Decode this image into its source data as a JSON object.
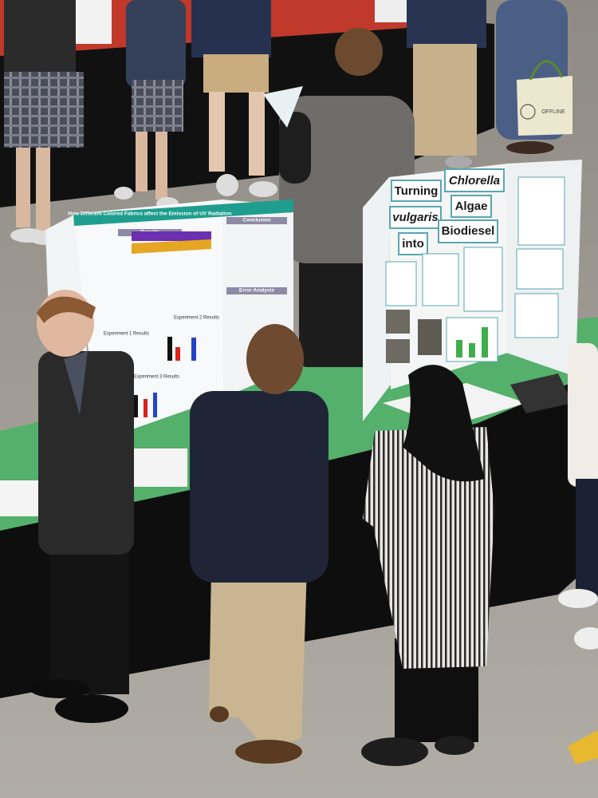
{
  "left_poster": {
    "title": "How Different Colored Fabrics affect the Emission of UV Radiation",
    "sections": [
      "Results",
      "Conclusion",
      "Error Analysis",
      "Experiment 1 Results",
      "Experiment 2 Results",
      "Experiment 3 Results"
    ]
  },
  "right_poster": {
    "title_words": [
      "Turning",
      "Chlorella",
      "vulgaris",
      "Algae",
      "into",
      "Biodiesel"
    ]
  },
  "tote_bag": {
    "text": "OFFLINE"
  }
}
